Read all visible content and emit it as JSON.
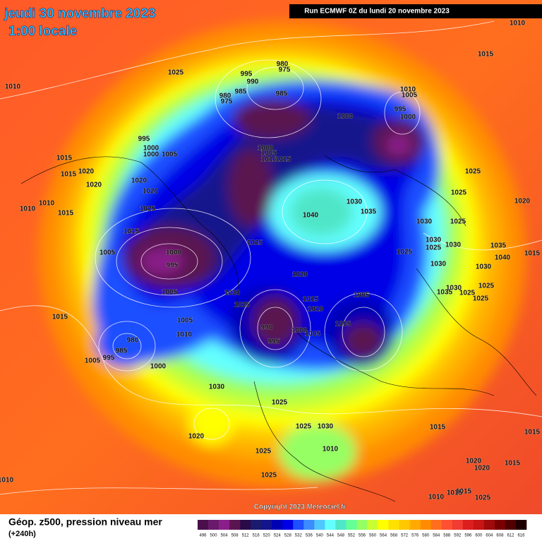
{
  "header": {
    "date": "jeudi 30 novembre 2023",
    "time": "1:00 locale",
    "run": "Run ECMWF 0Z du lundi 20 novembre 2023"
  },
  "map": {
    "isobar_labels": [
      1010,
      1015,
      1025,
      995,
      980,
      975,
      990,
      985,
      985,
      980,
      975,
      1010,
      1005,
      995,
      1000,
      1000,
      1010,
      995,
      1000,
      1000,
      1005,
      1000,
      1005,
      1010,
      1015,
      1015,
      1020,
      1015,
      1020,
      1020,
      1020,
      1025,
      1025,
      1010,
      1010,
      1015,
      1025,
      1040,
      1030,
      1035,
      1020,
      1030,
      1025,
      1015,
      1005,
      1000,
      995,
      1025,
      1030,
      1025,
      1030,
      1035,
      1040,
      1015,
      1025,
      1030,
      1030,
      1020,
      1005,
      1030,
      1030,
      1035,
      1025,
      1025,
      1025,
      1005,
      1015,
      1025,
      1010,
      1015,
      1005,
      1005,
      990,
      1000,
      1005,
      1010,
      995,
      980,
      985,
      995,
      1005,
      1000,
      1030,
      1025,
      1015,
      1015,
      1020,
      1025,
      1030,
      1010,
      1025,
      1025,
      1020,
      1020,
      1015,
      1010,
      1015,
      1025,
      1010,
      1015
    ]
  },
  "footer": {
    "copyright": "Copyright 2023 Meteociel.fr",
    "legend_title": "Géop. z500, pression niveau mer",
    "lead_time": "(+240h)"
  },
  "legend": {
    "values": [
      496,
      500,
      504,
      508,
      512,
      516,
      520,
      524,
      528,
      532,
      536,
      540,
      544,
      548,
      552,
      556,
      560,
      564,
      568,
      572,
      576,
      580,
      584,
      588,
      592,
      596,
      600,
      604,
      608,
      612,
      616
    ],
    "colors": [
      "#4b0f4b",
      "#6a1a6a",
      "#8a1e8a",
      "#5a1450",
      "#2b0a4a",
      "#1a1a6e",
      "#14148c",
      "#0000b4",
      "#0000e6",
      "#1e50ff",
      "#3c8cff",
      "#50c8ff",
      "#64ffff",
      "#50e6c8",
      "#64ff96",
      "#96ff64",
      "#c8ff32",
      "#ffff00",
      "#ffe100",
      "#ffc800",
      "#ffaa00",
      "#ff8c00",
      "#ff6e1e",
      "#ff5032",
      "#f03c32",
      "#dc1e1e",
      "#c81414",
      "#a00a0a",
      "#780000",
      "#500000",
      "#1e0000"
    ]
  }
}
